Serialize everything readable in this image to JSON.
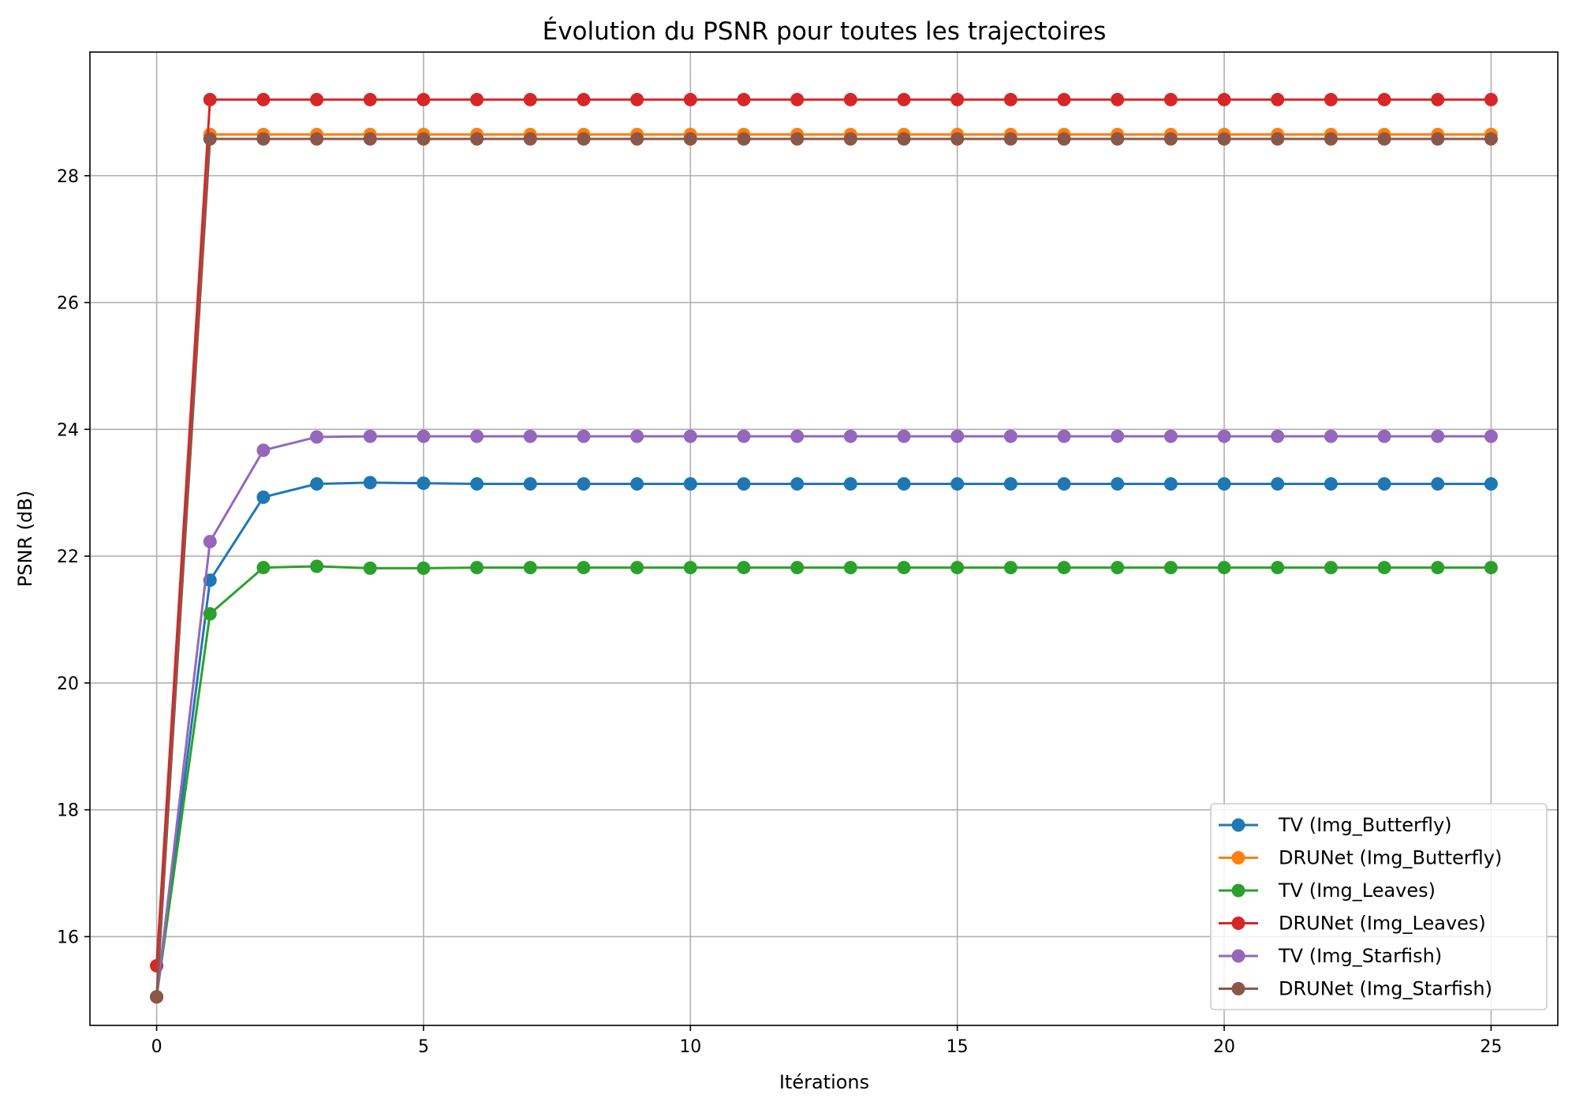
{
  "chart_data": {
    "type": "line",
    "title": "Évolution du PSNR pour toutes les trajectoires",
    "xlabel": "Itérations",
    "ylabel": "PSNR (dB)",
    "xlim": [
      -1.25,
      26.25
    ],
    "ylim": [
      14.6,
      29.95
    ],
    "xticks": [
      0,
      5,
      10,
      15,
      20,
      25
    ],
    "yticks": [
      16,
      18,
      20,
      22,
      24,
      26,
      28
    ],
    "grid": true,
    "legend_position": "bottom-right",
    "x": [
      0,
      1,
      2,
      3,
      4,
      5,
      6,
      7,
      8,
      9,
      10,
      11,
      12,
      13,
      14,
      15,
      16,
      17,
      18,
      19,
      20,
      21,
      22,
      23,
      24,
      25
    ],
    "series": [
      {
        "name": "TV (Img_Butterfly)",
        "color": "#1f77b4",
        "values": [
          15.05,
          21.62,
          22.93,
          23.14,
          23.16,
          23.15,
          23.14,
          23.14,
          23.14,
          23.14,
          23.14,
          23.14,
          23.14,
          23.14,
          23.14,
          23.14,
          23.14,
          23.14,
          23.14,
          23.14,
          23.14,
          23.14,
          23.14,
          23.14,
          23.14,
          23.14
        ]
      },
      {
        "name": "DRUNet (Img_Butterfly)",
        "color": "#ff7f0e",
        "values": [
          15.05,
          28.65,
          28.65,
          28.65,
          28.65,
          28.65,
          28.65,
          28.65,
          28.65,
          28.65,
          28.65,
          28.65,
          28.65,
          28.65,
          28.65,
          28.65,
          28.65,
          28.65,
          28.65,
          28.65,
          28.65,
          28.65,
          28.65,
          28.65,
          28.65,
          28.65
        ]
      },
      {
        "name": "TV (Img_Leaves)",
        "color": "#2ca02c",
        "values": [
          15.05,
          21.09,
          21.82,
          21.84,
          21.81,
          21.81,
          21.82,
          21.82,
          21.82,
          21.82,
          21.82,
          21.82,
          21.82,
          21.82,
          21.82,
          21.82,
          21.82,
          21.82,
          21.82,
          21.82,
          21.82,
          21.82,
          21.82,
          21.82,
          21.82,
          21.82
        ]
      },
      {
        "name": "DRUNet (Img_Leaves)",
        "color": "#d62728",
        "values": [
          15.54,
          29.2,
          29.2,
          29.2,
          29.2,
          29.2,
          29.2,
          29.2,
          29.2,
          29.2,
          29.2,
          29.2,
          29.2,
          29.2,
          29.2,
          29.2,
          29.2,
          29.2,
          29.2,
          29.2,
          29.2,
          29.2,
          29.2,
          29.2,
          29.2,
          29.2
        ]
      },
      {
        "name": "TV (Img_Starfish)",
        "color": "#9467bd",
        "values": [
          15.05,
          22.23,
          23.67,
          23.88,
          23.89,
          23.89,
          23.89,
          23.89,
          23.89,
          23.89,
          23.89,
          23.89,
          23.89,
          23.89,
          23.89,
          23.89,
          23.89,
          23.89,
          23.89,
          23.89,
          23.89,
          23.89,
          23.89,
          23.89,
          23.89,
          23.89
        ]
      },
      {
        "name": "DRUNet (Img_Starfish)",
        "color": "#8c564b",
        "values": [
          15.05,
          28.58,
          28.58,
          28.58,
          28.58,
          28.58,
          28.58,
          28.58,
          28.58,
          28.58,
          28.58,
          28.58,
          28.58,
          28.58,
          28.58,
          28.58,
          28.58,
          28.58,
          28.58,
          28.58,
          28.58,
          28.58,
          28.58,
          28.58,
          28.58,
          28.58
        ]
      }
    ]
  }
}
